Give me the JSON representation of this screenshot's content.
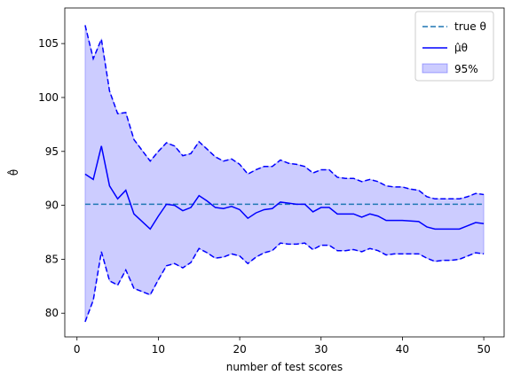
{
  "chart_data": {
    "type": "line",
    "xlabel": "number of test scores",
    "ylabel": "θ̂",
    "xlim": [
      -1.5,
      52.5
    ],
    "ylim": [
      77.8,
      108.3
    ],
    "xticks": [
      0,
      10,
      20,
      30,
      40,
      50
    ],
    "yticks": [
      80,
      85,
      90,
      95,
      100,
      105
    ],
    "grid": false,
    "legend_position": "top-right",
    "true_theta": 90.1,
    "x": [
      1,
      2,
      3,
      4,
      5,
      6,
      7,
      8,
      9,
      10,
      11,
      12,
      13,
      14,
      15,
      16,
      17,
      18,
      19,
      20,
      21,
      22,
      23,
      24,
      25,
      26,
      27,
      28,
      29,
      30,
      31,
      32,
      33,
      34,
      35,
      36,
      37,
      38,
      39,
      40,
      41,
      42,
      43,
      44,
      45,
      46,
      47,
      48,
      49,
      50
    ],
    "mean": [
      92.9,
      92.4,
      95.5,
      91.8,
      90.6,
      91.4,
      89.2,
      88.5,
      87.8,
      89.0,
      90.1,
      90.0,
      89.5,
      89.8,
      90.9,
      90.4,
      89.8,
      89.7,
      89.9,
      89.6,
      88.8,
      89.3,
      89.6,
      89.7,
      90.3,
      90.2,
      90.1,
      90.1,
      89.4,
      89.8,
      89.8,
      89.2,
      89.2,
      89.2,
      88.9,
      89.2,
      89.0,
      88.6,
      88.6,
      88.6,
      88.55,
      88.5,
      88.0,
      87.8,
      87.8,
      87.8,
      87.8,
      88.1,
      88.4,
      88.3
    ],
    "upper": [
      106.7,
      103.6,
      105.4,
      100.6,
      98.5,
      98.6,
      96.1,
      95.1,
      94.1,
      95.0,
      95.8,
      95.5,
      94.6,
      94.8,
      95.9,
      95.2,
      94.5,
      94.1,
      94.3,
      93.8,
      92.9,
      93.3,
      93.6,
      93.6,
      94.2,
      93.9,
      93.8,
      93.6,
      93.0,
      93.3,
      93.3,
      92.6,
      92.5,
      92.5,
      92.2,
      92.4,
      92.2,
      91.8,
      91.7,
      91.7,
      91.5,
      91.4,
      90.8,
      90.6,
      90.6,
      90.6,
      90.6,
      90.8,
      91.1,
      91.0
    ],
    "lower": [
      79.2,
      81.2,
      85.7,
      83.0,
      82.6,
      84.0,
      82.3,
      82.0,
      81.7,
      83.1,
      84.4,
      84.6,
      84.2,
      84.7,
      86.0,
      85.6,
      85.1,
      85.2,
      85.5,
      85.3,
      84.6,
      85.2,
      85.6,
      85.8,
      86.5,
      86.4,
      86.4,
      86.5,
      85.9,
      86.3,
      86.3,
      85.8,
      85.8,
      85.9,
      85.7,
      86.0,
      85.8,
      85.4,
      85.5,
      85.5,
      85.5,
      85.5,
      85.1,
      84.8,
      84.9,
      84.9,
      85.0,
      85.3,
      85.6,
      85.5
    ],
    "series": [
      {
        "name": "true θ",
        "style": "dashed",
        "color": "#1f77b4"
      },
      {
        "name": "μ̂θ",
        "style": "solid",
        "color": "#0000ff"
      },
      {
        "name": "95%",
        "style": "fill",
        "color": "#0000ff"
      }
    ]
  }
}
